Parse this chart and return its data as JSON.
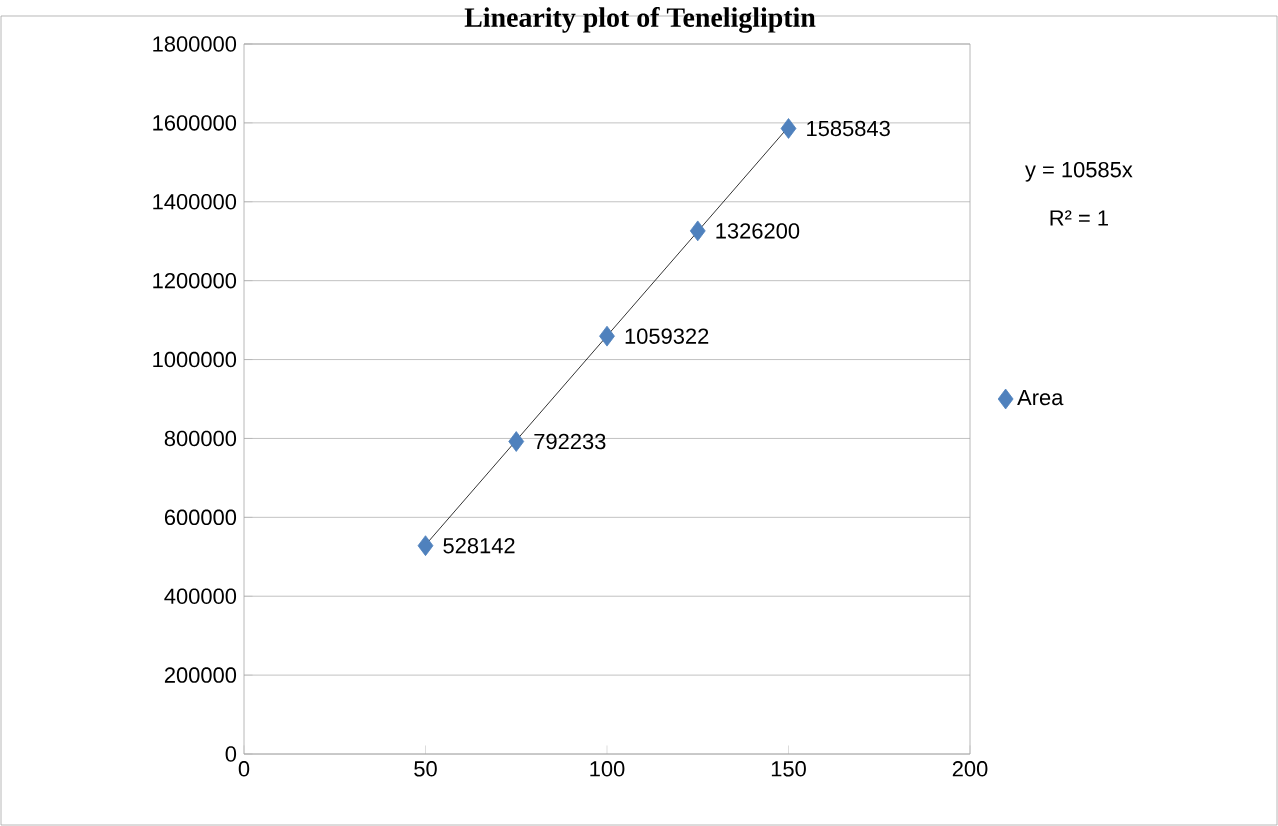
{
  "chart_data": {
    "type": "scatter",
    "title": "Linearity plot of Teneligliptin",
    "xlim": [
      0,
      200
    ],
    "xticks": [
      0,
      50,
      100,
      150,
      200
    ],
    "ylim": [
      0,
      1800000
    ],
    "yticks": [
      0,
      200000,
      400000,
      600000,
      800000,
      1000000,
      1200000,
      1400000,
      1600000,
      1800000
    ],
    "grid": "y",
    "legend": "right",
    "marker": "diamond",
    "series": [
      {
        "name": "Area",
        "color": "#4f81bd",
        "x": [
          50,
          75,
          100,
          125,
          150
        ],
        "values": [
          528142,
          792233,
          1059322,
          1326200,
          1585843
        ],
        "value_labels": [
          "528142",
          "792233",
          "1059322",
          "1326200",
          "1585843"
        ]
      },
      {
        "type": "line",
        "color": "#000000",
        "marker": "none",
        "x": [
          50,
          150
        ],
        "values": [
          530000,
          1590000
        ]
      }
    ],
    "annotations": [
      "y = 10585x",
      "R² = 1"
    ]
  }
}
